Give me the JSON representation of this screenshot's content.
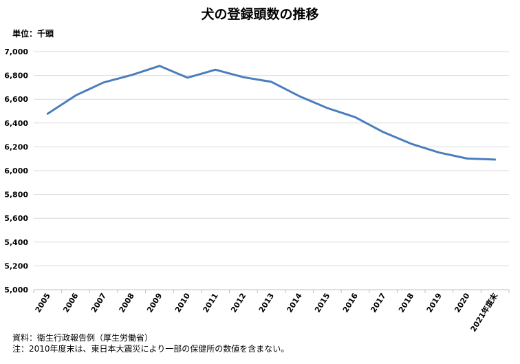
{
  "chart_data": {
    "type": "line",
    "title": "犬の登録頭数の推移",
    "unit_label": "単位：千頭",
    "categories": [
      "2005",
      "2006",
      "2007",
      "2008",
      "2009",
      "2010",
      "2011",
      "2012",
      "2013",
      "2014",
      "2015",
      "2016",
      "2017",
      "2018",
      "2019",
      "2020",
      "2021年度末"
    ],
    "series": [
      {
        "values": [
          6478,
          6632,
          6741,
          6803,
          6880,
          6781,
          6848,
          6785,
          6746,
          6626,
          6526,
          6449,
          6324,
          6226,
          6152,
          6102,
          6093
        ]
      }
    ],
    "y_ticks": [
      "5,000",
      "5,200",
      "5,400",
      "5,600",
      "5,800",
      "6,000",
      "6,200",
      "6,400",
      "6,600",
      "6,800",
      "7,000"
    ],
    "ylim": [
      5000,
      7000
    ],
    "grid": true,
    "line_color": "#4a7ebb"
  },
  "notes": {
    "source": "資料：衛生行政報告例（厚生労働省）",
    "footnote": "注：2010年度末は、東日本大震災により一部の保健所の数値を含まない。"
  }
}
